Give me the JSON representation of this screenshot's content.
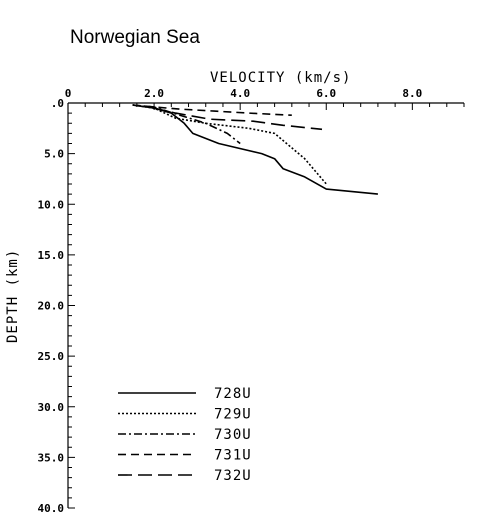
{
  "chart_data": {
    "type": "line",
    "title": "Norwegian Sea",
    "xlabel": "VELOCITY (km/s)",
    "ylabel": "DEPTH (km)",
    "xlim": [
      0,
      9.2
    ],
    "ylim": [
      0,
      40
    ],
    "y_inverted": true,
    "x_axis_position": "top",
    "x_ticks": [
      0,
      2,
      4,
      6,
      8
    ],
    "x_tick_labels": [
      "0",
      "2.0",
      "4.0",
      "6.0",
      "8.0"
    ],
    "y_ticks": [
      0,
      5,
      10,
      15,
      20,
      25,
      30,
      35,
      40
    ],
    "y_tick_labels": [
      ".0",
      "5.0",
      "10.0",
      "15.0",
      "20.0",
      "25.0",
      "30.0",
      "35.0",
      "40.0"
    ],
    "grid": false,
    "legend_position": "bottom-left",
    "series": [
      {
        "name": "728U",
        "dash": "solid",
        "points": [
          [
            1.5,
            0.2
          ],
          [
            2.0,
            0.5
          ],
          [
            2.4,
            1.0
          ],
          [
            2.7,
            2.0
          ],
          [
            2.9,
            3.0
          ],
          [
            3.5,
            4.0
          ],
          [
            4.5,
            5.0
          ],
          [
            4.8,
            5.5
          ],
          [
            5.0,
            6.5
          ],
          [
            5.5,
            7.3
          ],
          [
            6.0,
            8.5
          ],
          [
            7.2,
            9.0
          ]
        ]
      },
      {
        "name": "729U",
        "dash": "dotted",
        "points": [
          [
            1.5,
            0.2
          ],
          [
            2.0,
            0.5
          ],
          [
            2.5,
            1.5
          ],
          [
            3.2,
            2.0
          ],
          [
            4.2,
            2.5
          ],
          [
            4.8,
            3.0
          ],
          [
            5.5,
            5.5
          ],
          [
            6.0,
            8.0
          ]
        ]
      },
      {
        "name": "730U",
        "dash": "dashdot",
        "points": [
          [
            1.5,
            0.2
          ],
          [
            2.0,
            0.4
          ],
          [
            2.6,
            1.2
          ],
          [
            3.2,
            2.0
          ],
          [
            3.7,
            3.0
          ],
          [
            4.0,
            4.0
          ]
        ]
      },
      {
        "name": "731U",
        "dash": "dashed",
        "points": [
          [
            1.5,
            0.2
          ],
          [
            2.0,
            0.4
          ],
          [
            2.6,
            0.6
          ],
          [
            3.4,
            0.8
          ],
          [
            4.2,
            1.0
          ],
          [
            5.2,
            1.2
          ]
        ]
      },
      {
        "name": "732U",
        "dash": "longdash",
        "points": [
          [
            1.5,
            0.2
          ],
          [
            2.0,
            0.5
          ],
          [
            2.5,
            1.0
          ],
          [
            3.3,
            1.6
          ],
          [
            4.3,
            1.8
          ],
          [
            5.0,
            2.2
          ],
          [
            5.9,
            2.6
          ]
        ]
      }
    ]
  }
}
